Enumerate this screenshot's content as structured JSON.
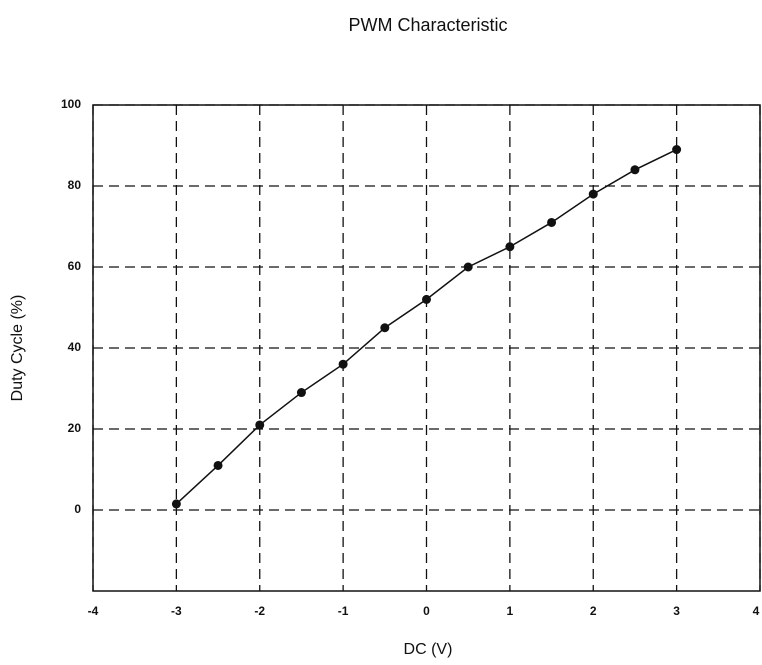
{
  "chart_data": {
    "type": "line",
    "title": "PWM Characteristic",
    "x_label": "DC (V)",
    "y_label": "Duty Cycle (%)",
    "x": [
      -3,
      -2.5,
      -2,
      -1.5,
      -1,
      -0.5,
      0,
      0.5,
      1,
      1.5,
      2,
      2.5,
      3
    ],
    "series": [
      {
        "name": "Duty Cycle",
        "color": "#111111",
        "values": [
          1.5,
          11,
          21,
          29,
          36,
          45,
          52,
          60,
          65,
          71,
          78,
          84,
          89
        ]
      }
    ],
    "xlim": [
      -4,
      4
    ],
    "xticks": [
      -4,
      -3,
      -2,
      -1,
      0,
      1,
      2,
      3,
      4
    ],
    "ylim": [
      -20,
      100
    ],
    "yticks": [
      0,
      20,
      40,
      60,
      80,
      100
    ],
    "grid": true
  }
}
